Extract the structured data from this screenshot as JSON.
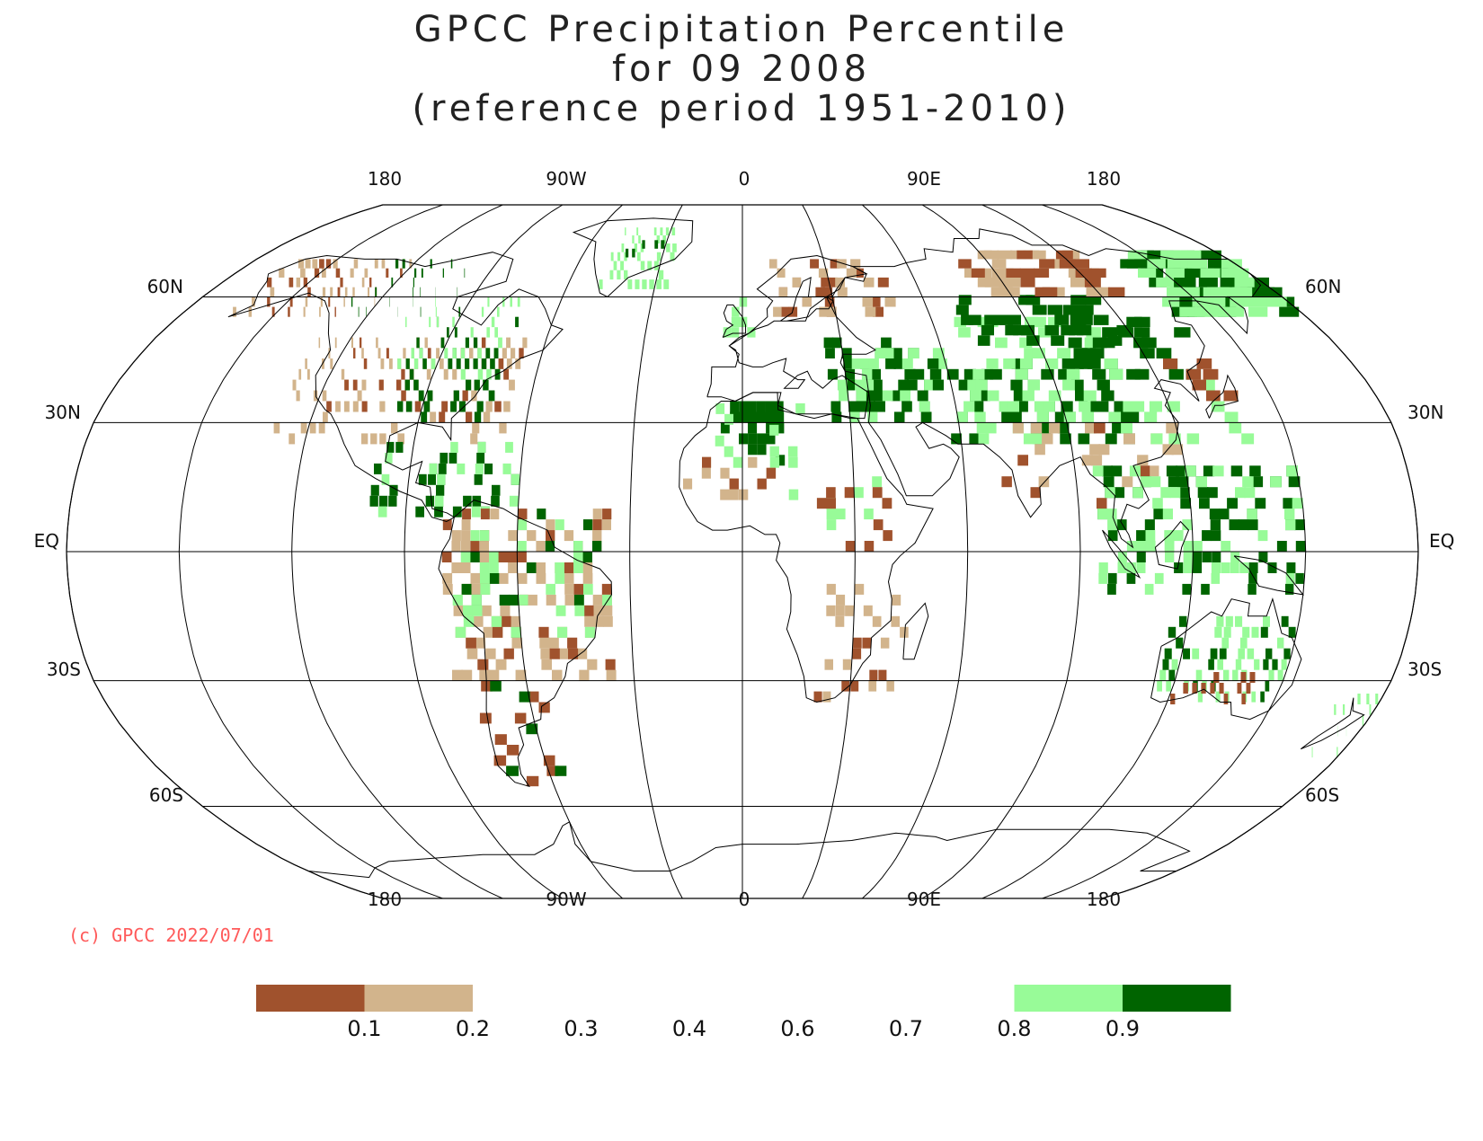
{
  "title": {
    "line1": "GPCC Precipitation Percentile",
    "line2": "for 09 2008",
    "line3": "(reference period 1951-2010)"
  },
  "copyright": "(c) GPCC 2022/07/01",
  "map": {
    "projection": "robinson",
    "graticule_lon": [
      -180,
      -150,
      -120,
      -90,
      -60,
      -30,
      0,
      30,
      60,
      90,
      120,
      150,
      180
    ],
    "graticule_lat": [
      60,
      30,
      0,
      -30,
      -60
    ],
    "lon_labels": {
      "l180w": "180",
      "l90w": "90W",
      "l0": "0",
      "l90e": "90E",
      "l180e": "180"
    },
    "lat_labels": {
      "n60": "60N",
      "n30": "30N",
      "eq": "EQ",
      "s30": "30S",
      "s60": "60S"
    },
    "colors": {
      "very_dry": "#a0522d",
      "dry": "#d2b48c",
      "wet": "#98fb98",
      "very_wet": "#006400",
      "line": "#000000"
    }
  },
  "legend": {
    "colors": [
      "#a0522d",
      "#d2b48c",
      "#ffffff",
      "#ffffff",
      "#ffffff",
      "#ffffff",
      "#ffffff",
      "#98fb98",
      "#006400"
    ],
    "labels": [
      "0.1",
      "0.2",
      "0.3",
      "0.4",
      "0.6",
      "0.7",
      "0.8",
      "0.9"
    ]
  }
}
